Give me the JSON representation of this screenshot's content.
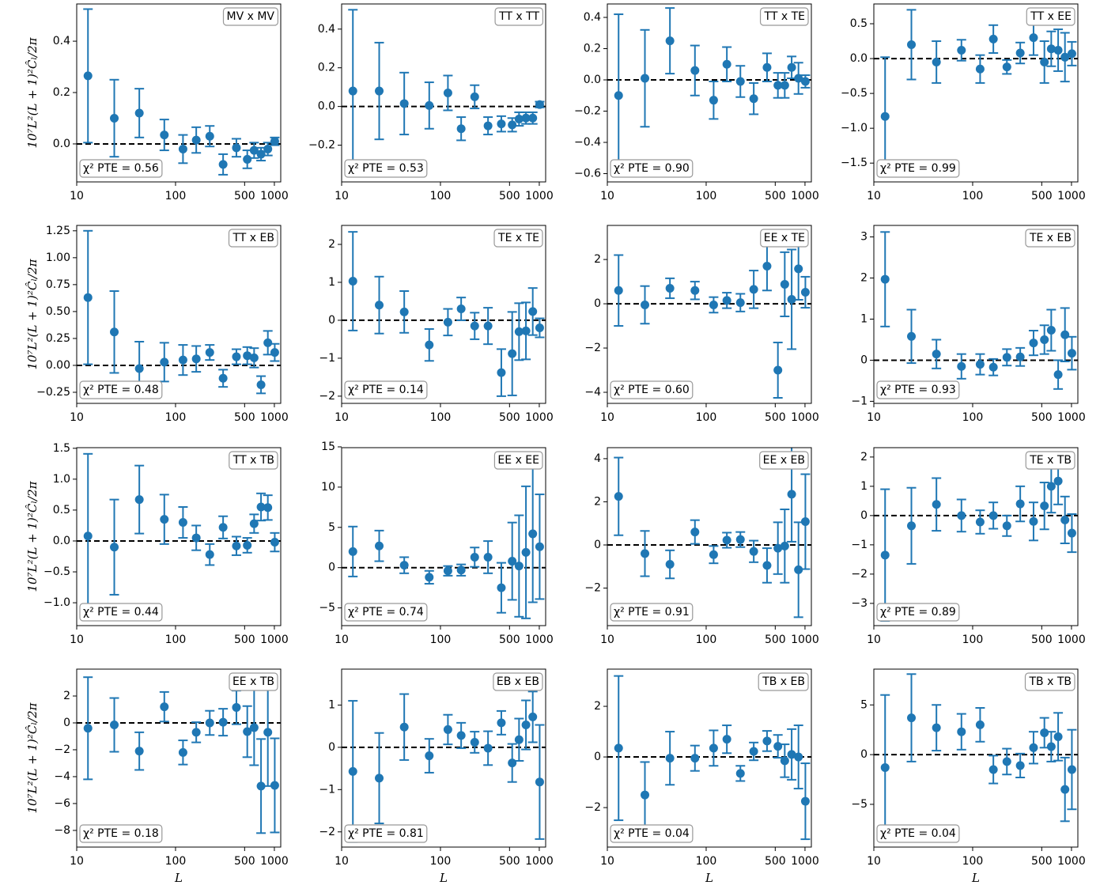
{
  "chart_data": [
    {
      "type": "errorbar",
      "title": "MV x MV",
      "annotation": "χ² PTE = 0.56",
      "ylabel": "10⁷L²(L + 1)²Ĉₗ/2π",
      "x": [
        13,
        24,
        43,
        77,
        119,
        162,
        222,
        303,
        413,
        532,
        624,
        733,
        859,
        1009
      ],
      "values": [
        0.265,
        0.1,
        0.12,
        0.035,
        -0.02,
        0.015,
        0.03,
        -0.08,
        -0.015,
        -0.06,
        -0.025,
        -0.04,
        -0.02,
        0.01
      ],
      "errors": [
        0.26,
        0.15,
        0.095,
        0.06,
        0.055,
        0.05,
        0.04,
        0.04,
        0.035,
        0.035,
        0.03,
        0.025,
        0.025,
        0.015
      ],
      "color": "#1f77b4",
      "xscale": "log",
      "xlim": [
        10,
        1160
      ],
      "xticks": [
        10,
        100,
        500,
        1000
      ],
      "ylim": [
        -0.148,
        0.545
      ],
      "yticks": [
        {
          "value": 0,
          "label": "0.0"
        },
        0.2,
        0.4
      ],
      "reference_line": 0
    },
    {
      "type": "errorbar",
      "title": "TT x TT",
      "annotation": "χ² PTE = 0.53",
      "x": [
        13,
        24,
        43,
        77,
        119,
        162,
        222,
        303,
        413,
        532,
        624,
        733,
        859,
        1009
      ],
      "values": [
        0.08,
        0.08,
        0.015,
        0.005,
        0.07,
        -0.115,
        0.05,
        -0.1,
        -0.09,
        -0.095,
        -0.065,
        -0.06,
        -0.06,
        0.01
      ],
      "errors": [
        0.42,
        0.25,
        0.16,
        0.12,
        0.09,
        0.06,
        0.06,
        0.045,
        0.04,
        0.035,
        0.035,
        0.03,
        0.03,
        0.015
      ],
      "color": "#1f77b4",
      "xscale": "log",
      "xlim": [
        10,
        1160
      ],
      "xticks": [
        10,
        100,
        500,
        1000
      ],
      "ylim": [
        -0.39,
        0.53
      ],
      "yticks": [
        {
          "value": -0.2,
          "label": "−0.2"
        },
        {
          "value": 0,
          "label": "0.0"
        },
        0.2,
        0.4
      ],
      "reference_line": 0
    },
    {
      "type": "errorbar",
      "title": "TT x TE",
      "annotation": "χ² PTE = 0.90",
      "x": [
        13,
        24,
        43,
        77,
        119,
        162,
        222,
        303,
        413,
        532,
        624,
        733,
        859,
        1009
      ],
      "values": [
        -0.1,
        0.01,
        0.25,
        0.06,
        -0.13,
        0.1,
        -0.01,
        -0.12,
        0.08,
        -0.035,
        -0.035,
        0.08,
        0.01,
        -0.01
      ],
      "errors": [
        0.52,
        0.31,
        0.21,
        0.16,
        0.12,
        0.11,
        0.1,
        0.1,
        0.09,
        0.08,
        0.08,
        0.07,
        0.1,
        0.04
      ],
      "color": "#1f77b4",
      "xscale": "log",
      "xlim": [
        10,
        1160
      ],
      "xticks": [
        10,
        100,
        500,
        1000
      ],
      "ylim": [
        -0.653,
        0.486
      ],
      "yticks": [
        {
          "value": -0.6,
          "label": "−0.6"
        },
        {
          "value": -0.4,
          "label": "−0.4"
        },
        {
          "value": -0.2,
          "label": "−0.2"
        },
        {
          "value": 0,
          "label": "0.0"
        },
        0.2,
        0.4
      ],
      "reference_line": 0
    },
    {
      "type": "errorbar",
      "title": "TT x EE",
      "annotation": "χ² PTE = 0.99",
      "x": [
        13,
        24,
        43,
        77,
        119,
        162,
        222,
        303,
        413,
        532,
        624,
        733,
        859,
        1009
      ],
      "values": [
        -0.83,
        0.2,
        -0.05,
        0.12,
        -0.15,
        0.28,
        -0.12,
        0.08,
        0.3,
        -0.05,
        0.14,
        0.12,
        0.02,
        0.07
      ],
      "errors": [
        0.85,
        0.5,
        0.3,
        0.15,
        0.2,
        0.2,
        0.1,
        0.15,
        0.25,
        0.3,
        0.25,
        0.3,
        0.35,
        0.17
      ],
      "color": "#1f77b4",
      "xscale": "log",
      "xlim": [
        10,
        1160
      ],
      "xticks": [
        10,
        100,
        500,
        1000
      ],
      "ylim": [
        -1.77,
        0.784
      ],
      "yticks": [
        {
          "value": -1.5,
          "label": "−1.5"
        },
        {
          "value": -1,
          "label": "−1.0"
        },
        {
          "value": -0.5,
          "label": "−0.5"
        },
        {
          "value": 0,
          "label": "0.0"
        },
        0.5
      ],
      "reference_line": 0
    },
    {
      "type": "errorbar",
      "title": "TT x EB",
      "annotation": "χ² PTE = 0.48",
      "ylabel": "10⁷L²(L + 1)²Ĉₗ/2π",
      "x": [
        13,
        24,
        43,
        77,
        119,
        162,
        222,
        303,
        413,
        532,
        624,
        733,
        859,
        1009
      ],
      "values": [
        0.63,
        0.31,
        -0.03,
        0.03,
        0.05,
        0.06,
        0.12,
        -0.12,
        0.08,
        0.09,
        0.07,
        -0.18,
        0.21,
        0.12
      ],
      "errors": [
        0.62,
        0.38,
        0.25,
        0.18,
        0.14,
        0.12,
        0.07,
        0.08,
        0.07,
        0.08,
        0.09,
        0.08,
        0.11,
        0.08
      ],
      "color": "#1f77b4",
      "xscale": "log",
      "xlim": [
        10,
        1160
      ],
      "xticks": [
        10,
        100,
        500,
        1000
      ],
      "ylim": [
        -0.353,
        1.3
      ],
      "yticks": [
        {
          "value": -0.25,
          "label": "−0.25"
        },
        {
          "value": 0,
          "label": "0.00"
        },
        0.25,
        {
          "value": 0.5,
          "label": "0.50"
        },
        0.75,
        {
          "value": 1,
          "label": "1.00"
        },
        1.25
      ],
      "reference_line": 0
    },
    {
      "type": "errorbar",
      "title": "TE x TE",
      "annotation": "χ² PTE = 0.14",
      "x": [
        13,
        24,
        43,
        77,
        119,
        162,
        222,
        303,
        413,
        532,
        624,
        733,
        859,
        1009
      ],
      "values": [
        1.03,
        0.4,
        0.22,
        -0.65,
        -0.05,
        0.3,
        -0.15,
        -0.15,
        -1.38,
        -0.88,
        -0.3,
        -0.28,
        0.23,
        -0.2
      ],
      "errors": [
        1.3,
        0.75,
        0.55,
        0.42,
        0.35,
        0.3,
        0.35,
        0.48,
        0.62,
        1.1,
        0.75,
        0.75,
        0.62,
        0.25
      ],
      "color": "#1f77b4",
      "xscale": "log",
      "xlim": [
        10,
        1160
      ],
      "xticks": [
        10,
        100,
        500,
        1000
      ],
      "ylim": [
        -2.19,
        2.5
      ],
      "yticks": [
        {
          "value": -2,
          "label": "−2"
        },
        {
          "value": -1,
          "label": "−1"
        },
        0,
        1,
        2
      ],
      "reference_line": 0
    },
    {
      "type": "errorbar",
      "title": "EE x TE",
      "annotation": "χ² PTE = 0.60",
      "x": [
        13,
        24,
        43,
        77,
        119,
        162,
        222,
        303,
        413,
        532,
        624,
        733,
        859,
        1009
      ],
      "values": [
        0.6,
        -0.05,
        0.7,
        0.6,
        -0.05,
        0.15,
        0.05,
        0.65,
        1.7,
        -3.0,
        0.88,
        0.2,
        1.58,
        0.52
      ],
      "errors": [
        1.6,
        0.85,
        0.45,
        0.4,
        0.35,
        0.35,
        0.4,
        0.85,
        1.1,
        1.25,
        1.45,
        2.25,
        1.4,
        0.7
      ],
      "color": "#1f77b4",
      "xscale": "log",
      "xlim": [
        10,
        1160
      ],
      "xticks": [
        10,
        100,
        500,
        1000
      ],
      "ylim": [
        -4.5,
        3.54
      ],
      "yticks": [
        {
          "value": -4,
          "label": "−4"
        },
        {
          "value": -2,
          "label": "−2"
        },
        0,
        2
      ],
      "reference_line": 0
    },
    {
      "type": "errorbar",
      "title": "TE x EB",
      "annotation": "χ² PTE = 0.93",
      "x": [
        13,
        24,
        43,
        77,
        119,
        162,
        222,
        303,
        413,
        532,
        624,
        733,
        859,
        1009
      ],
      "values": [
        1.97,
        0.58,
        0.15,
        -0.15,
        -0.1,
        -0.17,
        0.07,
        0.08,
        0.42,
        0.5,
        0.73,
        -0.35,
        0.62,
        0.17
      ],
      "errors": [
        1.15,
        0.65,
        0.35,
        0.3,
        0.25,
        0.2,
        0.2,
        0.22,
        0.3,
        0.35,
        0.5,
        0.35,
        0.65,
        0.4
      ],
      "color": "#1f77b4",
      "xscale": "log",
      "xlim": [
        10,
        1160
      ],
      "xticks": [
        10,
        100,
        500,
        1000
      ],
      "ylim": [
        -1.05,
        3.28
      ],
      "yticks": [
        {
          "value": -1,
          "label": "−1"
        },
        0,
        1,
        2,
        3
      ],
      "reference_line": 0
    },
    {
      "type": "errorbar",
      "title": "TT x TB",
      "annotation": "χ² PTE = 0.44",
      "ylabel": "10⁷L²(L + 1)²Ĉₗ/2π",
      "x": [
        13,
        24,
        43,
        77,
        119,
        162,
        222,
        303,
        413,
        532,
        624,
        733,
        859,
        1009
      ],
      "values": [
        0.08,
        -0.1,
        0.67,
        0.35,
        0.3,
        0.05,
        -0.22,
        0.22,
        -0.08,
        -0.07,
        0.28,
        0.55,
        0.54,
        -0.02
      ],
      "errors": [
        1.33,
        0.77,
        0.55,
        0.4,
        0.25,
        0.2,
        0.17,
        0.18,
        0.15,
        0.12,
        0.15,
        0.22,
        0.2,
        0.15
      ],
      "color": "#1f77b4",
      "xscale": "log",
      "xlim": [
        10,
        1160
      ],
      "xticks": [
        10,
        100,
        500,
        1000
      ],
      "ylim": [
        -1.37,
        1.51
      ],
      "yticks": [
        {
          "value": -1,
          "label": "−1.0"
        },
        {
          "value": -0.5,
          "label": "−0.5"
        },
        {
          "value": 0,
          "label": "0.0"
        },
        0.5,
        {
          "value": 1,
          "label": "1.0"
        },
        1.5
      ],
      "reference_line": 0
    },
    {
      "type": "errorbar",
      "title": "EE x EE",
      "annotation": "χ² PTE = 0.74",
      "x": [
        13,
        24,
        43,
        77,
        119,
        162,
        222,
        303,
        413,
        532,
        624,
        733,
        859,
        1009
      ],
      "values": [
        2.0,
        2.7,
        0.3,
        -1.2,
        -0.4,
        -0.3,
        1.3,
        1.3,
        -2.5,
        0.8,
        0.2,
        1.9,
        4.2,
        2.6
      ],
      "errors": [
        3.1,
        1.9,
        1.0,
        0.8,
        0.6,
        0.7,
        1.2,
        2.0,
        3.1,
        4.8,
        6.3,
        8.2,
        8.5,
        6.5
      ],
      "color": "#1f77b4",
      "xscale": "log",
      "xlim": [
        10,
        1160
      ],
      "xticks": [
        10,
        100,
        500,
        1000
      ],
      "ylim": [
        -7.2,
        14.9
      ],
      "yticks": [
        {
          "value": -5,
          "label": "−5"
        },
        0,
        5,
        10,
        15
      ],
      "reference_line": 0
    },
    {
      "type": "errorbar",
      "title": "EE x EB",
      "annotation": "χ² PTE = 0.91",
      "x": [
        13,
        24,
        43,
        77,
        119,
        162,
        222,
        303,
        413,
        532,
        624,
        733,
        859,
        1009
      ],
      "values": [
        2.25,
        -0.4,
        -0.9,
        0.6,
        -0.45,
        0.22,
        0.25,
        -0.3,
        -0.95,
        -0.15,
        -0.05,
        2.35,
        -1.15,
        1.08
      ],
      "errors": [
        1.8,
        1.05,
        0.65,
        0.55,
        0.4,
        0.35,
        0.35,
        0.5,
        0.8,
        1.2,
        1.7,
        2.2,
        2.2,
        2.2
      ],
      "color": "#1f77b4",
      "xscale": "log",
      "xlim": [
        10,
        1160
      ],
      "xticks": [
        10,
        100,
        500,
        1000
      ],
      "ylim": [
        -3.74,
        4.51
      ],
      "yticks": [
        {
          "value": -2,
          "label": "−2"
        },
        0,
        2,
        4
      ],
      "reference_line": 0
    },
    {
      "type": "errorbar",
      "title": "TE x TB",
      "annotation": "χ² PTE = 0.89",
      "x": [
        13,
        24,
        43,
        77,
        119,
        162,
        222,
        303,
        413,
        532,
        624,
        733,
        859,
        1009
      ],
      "values": [
        -1.35,
        -0.35,
        0.38,
        0.0,
        -0.22,
        0.0,
        -0.35,
        0.4,
        -0.2,
        0.33,
        1.0,
        1.18,
        -0.15,
        -0.6
      ],
      "errors": [
        2.25,
        1.3,
        0.9,
        0.55,
        0.4,
        0.45,
        0.35,
        0.6,
        0.65,
        0.8,
        0.9,
        0.8,
        0.8,
        0.65
      ],
      "color": "#1f77b4",
      "xscale": "log",
      "xlim": [
        10,
        1160
      ],
      "xticks": [
        10,
        100,
        500,
        1000
      ],
      "ylim": [
        -3.76,
        2.32
      ],
      "yticks": [
        {
          "value": -3,
          "label": "−3"
        },
        {
          "value": -2,
          "label": "−2"
        },
        {
          "value": -1,
          "label": "−1"
        },
        0,
        1,
        2
      ],
      "reference_line": 0
    },
    {
      "type": "errorbar",
      "title": "EE x TB",
      "annotation": "χ² PTE = 0.18",
      "ylabel": "10⁷L²(L + 1)²Ĉₗ/2π",
      "xlabel": "L",
      "x": [
        13,
        24,
        43,
        77,
        119,
        162,
        222,
        303,
        413,
        532,
        624,
        733,
        859,
        1009
      ],
      "values": [
        -0.4,
        -0.15,
        -2.1,
        1.2,
        -2.2,
        -0.7,
        0.0,
        0.05,
        1.15,
        -0.65,
        -0.35,
        -4.7,
        -0.7,
        -4.65
      ],
      "errors": [
        3.8,
        2.0,
        1.4,
        1.1,
        0.9,
        0.75,
        0.9,
        1.0,
        1.25,
        1.9,
        2.8,
        3.5,
        4.0,
        3.5
      ],
      "color": "#1f77b4",
      "xscale": "log",
      "xlim": [
        10,
        1160
      ],
      "xticks": [
        10,
        100,
        500,
        1000
      ],
      "ylim": [
        -9.24,
        4.0
      ],
      "yticks": [
        {
          "value": -8,
          "label": "−8"
        },
        {
          "value": -6,
          "label": "−6"
        },
        {
          "value": -4,
          "label": "−4"
        },
        {
          "value": -2,
          "label": "−2"
        },
        0,
        2
      ],
      "reference_line": 0
    },
    {
      "type": "errorbar",
      "title": "EB x EB",
      "annotation": "χ² PTE = 0.81",
      "xlabel": "L",
      "x": [
        13,
        24,
        43,
        77,
        119,
        162,
        222,
        303,
        413,
        532,
        624,
        733,
        859,
        1009
      ],
      "values": [
        -0.57,
        -0.73,
        0.48,
        -0.2,
        0.42,
        0.28,
        0.12,
        -0.02,
        0.58,
        -0.37,
        0.18,
        0.53,
        0.72,
        -0.82
      ],
      "errors": [
        1.67,
        1.07,
        0.78,
        0.4,
        0.35,
        0.3,
        0.25,
        0.4,
        0.28,
        0.45,
        0.5,
        0.58,
        0.6,
        1.35
      ],
      "color": "#1f77b4",
      "xscale": "log",
      "xlim": [
        10,
        1160
      ],
      "xticks": [
        10,
        100,
        500,
        1000
      ],
      "ylim": [
        -2.36,
        1.85
      ],
      "yticks": [
        {
          "value": -2,
          "label": "−2"
        },
        {
          "value": -1,
          "label": "−1"
        },
        0,
        1
      ],
      "reference_line": 0
    },
    {
      "type": "errorbar",
      "title": "TB x EB",
      "annotation": "χ² PTE = 0.04",
      "xlabel": "L",
      "x": [
        13,
        24,
        43,
        77,
        119,
        162,
        222,
        303,
        413,
        532,
        624,
        733,
        859,
        1009
      ],
      "values": [
        0.35,
        -1.5,
        -0.05,
        -0.05,
        0.35,
        0.7,
        -0.65,
        0.22,
        0.63,
        0.42,
        -0.15,
        0.1,
        0.0,
        -1.75
      ],
      "errors": [
        2.85,
        1.3,
        1.05,
        0.5,
        0.7,
        0.55,
        0.3,
        0.35,
        0.4,
        0.45,
        0.65,
        1.0,
        1.25,
        1.5
      ],
      "color": "#1f77b4",
      "xscale": "log",
      "xlim": [
        10,
        1160
      ],
      "xticks": [
        10,
        100,
        500,
        1000
      ],
      "ylim": [
        -3.56,
        3.47
      ],
      "yticks": [
        {
          "value": -2,
          "label": "−2"
        },
        0,
        2
      ],
      "reference_line": 0
    },
    {
      "type": "errorbar",
      "title": "TB x TB",
      "annotation": "χ² PTE = 0.04",
      "xlabel": "L",
      "x": [
        13,
        24,
        43,
        77,
        119,
        162,
        222,
        303,
        413,
        532,
        624,
        733,
        859,
        1009
      ],
      "values": [
        -1.3,
        3.7,
        2.7,
        2.3,
        3.0,
        -1.5,
        -0.7,
        -1.1,
        0.7,
        2.2,
        0.8,
        1.8,
        -3.5,
        -1.5
      ],
      "errors": [
        7.3,
        4.4,
        2.3,
        1.8,
        1.7,
        1.4,
        1.3,
        1.2,
        1.6,
        1.5,
        1.5,
        2.4,
        3.2,
        4.0
      ],
      "color": "#1f77b4",
      "xscale": "log",
      "xlim": [
        10,
        1160
      ],
      "xticks": [
        10,
        100,
        500,
        1000
      ],
      "ylim": [
        -9.3,
        8.6
      ],
      "yticks": [
        {
          "value": -5,
          "label": "−5"
        },
        0,
        5
      ],
      "reference_line": 0
    }
  ]
}
